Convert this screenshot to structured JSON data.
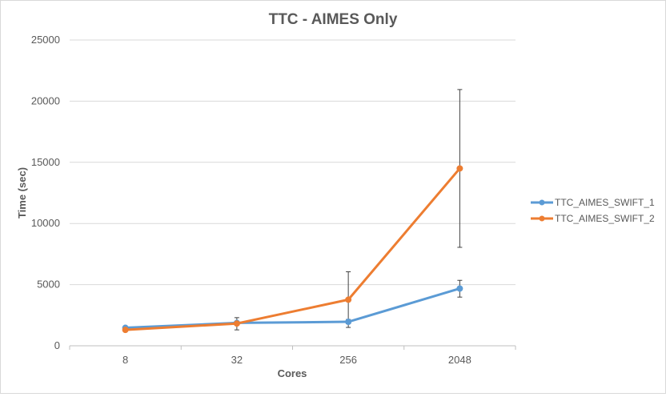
{
  "chart_data": {
    "type": "line",
    "title": "TTC - AIMES Only",
    "xlabel": "Cores",
    "ylabel": "Time (sec)",
    "categories": [
      "8",
      "32",
      "256",
      "2048"
    ],
    "ylim": [
      0,
      25000
    ],
    "yticks": [
      "0",
      "5000",
      "10000",
      "15000",
      "20000",
      "25000"
    ],
    "grid": true,
    "legend": "right",
    "series": [
      {
        "name": "TTC_AIMES_SWIFT_1",
        "color": "#5b9bd5",
        "values": [
          1470,
          1870,
          1960,
          4680
        ],
        "error_low": [
          1380,
          1750,
          1800,
          3980
        ],
        "error_high": [
          1560,
          2000,
          2150,
          5350
        ]
      },
      {
        "name": "TTC_AIMES_SWIFT_2",
        "color": "#ed7d31",
        "values": [
          1300,
          1820,
          3770,
          14500
        ],
        "error_low": [
          1220,
          1300,
          1500,
          8050
        ],
        "error_high": [
          1380,
          2300,
          6050,
          20950
        ]
      }
    ]
  }
}
